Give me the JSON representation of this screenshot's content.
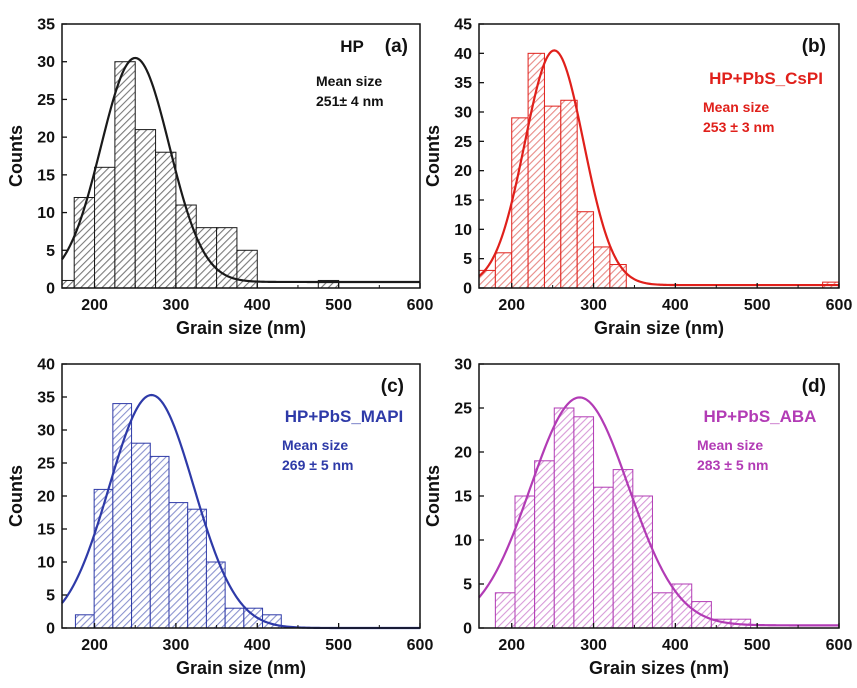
{
  "chart_data": [
    {
      "type": "bar",
      "tag": "(a)",
      "sample": "HP",
      "mean_label": "Mean size",
      "mean_value": "251± 4 nm",
      "color": "#1a1a1a",
      "fill_hatch": "#7a7a7a",
      "xlabel": "Grain size (nm)",
      "ylabel": "Counts",
      "xlim": [
        160,
        600
      ],
      "ylim": [
        0,
        35
      ],
      "xticks": [
        200,
        300,
        400,
        500,
        600
      ],
      "yticks": [
        0,
        5,
        10,
        15,
        20,
        25,
        30,
        35
      ],
      "bin_width": 25,
      "bins": [
        {
          "x": 162.5,
          "count": 1
        },
        {
          "x": 187.5,
          "count": 12
        },
        {
          "x": 212.5,
          "count": 16
        },
        {
          "x": 237.5,
          "count": 30
        },
        {
          "x": 262.5,
          "count": 21
        },
        {
          "x": 287.5,
          "count": 18
        },
        {
          "x": 312.5,
          "count": 11
        },
        {
          "x": 337.5,
          "count": 8
        },
        {
          "x": 362.5,
          "count": 8
        },
        {
          "x": 387.5,
          "count": 5
        },
        {
          "x": 487.5,
          "count": 1
        }
      ],
      "fit": {
        "type": "gaussian",
        "peak_x": 250,
        "peak_y": 30.5,
        "sigma": 42,
        "baseline": 0.8
      }
    },
    {
      "type": "bar",
      "tag": "(b)",
      "sample": "HP+PbS_CsPI",
      "mean_label": "Mean size",
      "mean_value": "253 ± 3 nm",
      "color": "#e0201b",
      "fill_hatch": "#e88a86",
      "xlabel": "Grain size (nm)",
      "ylabel": "Counts",
      "xlim": [
        160,
        600
      ],
      "ylim": [
        0,
        45
      ],
      "xticks": [
        200,
        300,
        400,
        500,
        600
      ],
      "yticks": [
        0,
        5,
        10,
        15,
        20,
        25,
        30,
        35,
        40,
        45
      ],
      "bin_width": 20,
      "bins": [
        {
          "x": 170,
          "count": 3
        },
        {
          "x": 190,
          "count": 6
        },
        {
          "x": 210,
          "count": 29
        },
        {
          "x": 230,
          "count": 40
        },
        {
          "x": 250,
          "count": 31
        },
        {
          "x": 270,
          "count": 32
        },
        {
          "x": 290,
          "count": 13
        },
        {
          "x": 310,
          "count": 7
        },
        {
          "x": 330,
          "count": 4
        },
        {
          "x": 590,
          "count": 1
        }
      ],
      "fit": {
        "type": "gaussian",
        "peak_x": 252,
        "peak_y": 40.5,
        "sigma": 36,
        "baseline": 0.5
      }
    },
    {
      "type": "bar",
      "tag": "(c)",
      "sample": "HP+PbS_MAPI",
      "mean_label": "Mean size",
      "mean_value": "269 ± 5 nm",
      "color": "#2e3aa8",
      "fill_hatch": "#8b93cf",
      "xlabel": "Grain size (nm)",
      "ylabel": "Counts",
      "xlim": [
        160,
        600
      ],
      "ylim": [
        0,
        40
      ],
      "xticks": [
        200,
        300,
        400,
        500,
        600
      ],
      "yticks": [
        0,
        5,
        10,
        15,
        20,
        25,
        30,
        35,
        40
      ],
      "bin_width": 23,
      "bins": [
        {
          "x": 188,
          "count": 2
        },
        {
          "x": 211,
          "count": 21
        },
        {
          "x": 234,
          "count": 34
        },
        {
          "x": 257,
          "count": 28
        },
        {
          "x": 280,
          "count": 26
        },
        {
          "x": 303,
          "count": 19
        },
        {
          "x": 326,
          "count": 18
        },
        {
          "x": 349,
          "count": 10
        },
        {
          "x": 372,
          "count": 3
        },
        {
          "x": 395,
          "count": 3
        },
        {
          "x": 418,
          "count": 2
        }
      ],
      "fit": {
        "type": "gaussian",
        "peak_x": 270,
        "peak_y": 35.3,
        "sigma": 52,
        "baseline": 0
      }
    },
    {
      "type": "bar",
      "tag": "(d)",
      "sample": "HP+PbS_ABA",
      "mean_label": "Mean size",
      "mean_value": "283 ± 5 nm",
      "color": "#b23bb5",
      "fill_hatch": "#d79ad8",
      "xlabel": "Grain sizes (nm)",
      "ylabel": "Counts",
      "xlim": [
        160,
        600
      ],
      "ylim": [
        0,
        30
      ],
      "xticks": [
        200,
        300,
        400,
        500,
        600
      ],
      "yticks": [
        0,
        5,
        10,
        15,
        20,
        25,
        30
      ],
      "bin_width": 24,
      "bins": [
        {
          "x": 192,
          "count": 4
        },
        {
          "x": 216,
          "count": 15
        },
        {
          "x": 240,
          "count": 19
        },
        {
          "x": 264,
          "count": 25
        },
        {
          "x": 288,
          "count": 24
        },
        {
          "x": 312,
          "count": 16
        },
        {
          "x": 336,
          "count": 18
        },
        {
          "x": 360,
          "count": 15
        },
        {
          "x": 384,
          "count": 4
        },
        {
          "x": 408,
          "count": 5
        },
        {
          "x": 432,
          "count": 3
        },
        {
          "x": 456,
          "count": 1
        },
        {
          "x": 480,
          "count": 1
        }
      ],
      "fit": {
        "type": "gaussian",
        "peak_x": 283,
        "peak_y": 26.2,
        "sigma": 60,
        "baseline": 0.3
      }
    }
  ]
}
